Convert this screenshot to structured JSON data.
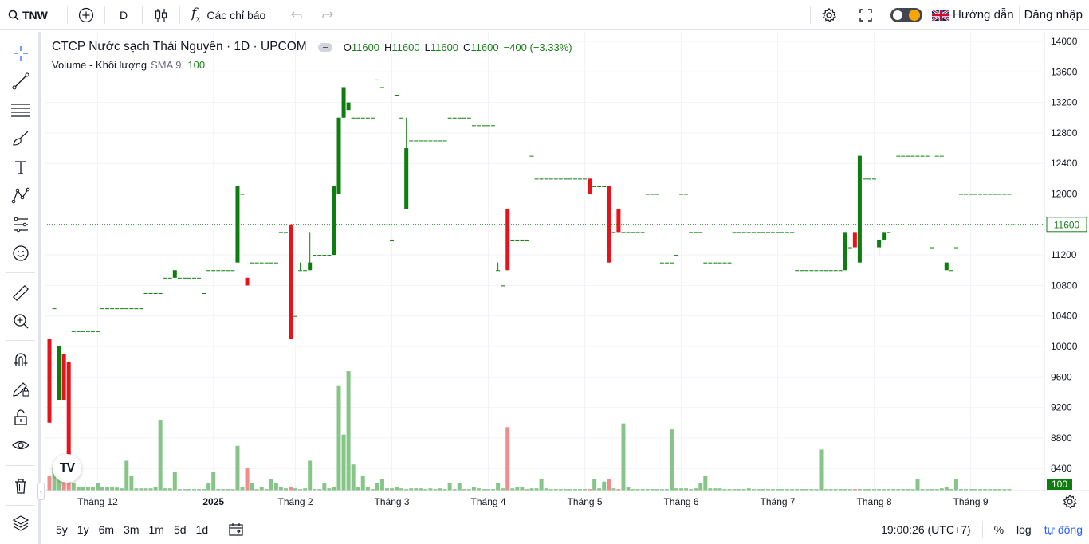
{
  "topbar": {
    "symbol": "TNW",
    "interval": "D",
    "indicators_label": "Các chỉ báo",
    "help_label": "Hướng dẫn",
    "login_label": "Đăng nhập"
  },
  "legend": {
    "title": "CTCP Nước sạch Thái Nguyên · 1D · UPCOM",
    "open_label": "O",
    "open": "11600",
    "high_label": "H",
    "high": "11600",
    "low_label": "L",
    "low": "11600",
    "close_label": "C",
    "close": "11600",
    "change": "−400 (−3.33%)",
    "volume_name": "Volume - Khối lượng",
    "volume_sma": "SMA 9",
    "volume_value": "100"
  },
  "bottombar": {
    "ranges": [
      "5y",
      "1y",
      "6m",
      "3m",
      "1m",
      "5d",
      "1d"
    ],
    "time": "19:00:26 (UTC+7)",
    "percent": "%",
    "log": "log",
    "auto": "tự động"
  },
  "logo_text": "TV",
  "colors": {
    "up": "#0d7d0d",
    "down": "#e8121a",
    "vol_up": "#86c587",
    "vol_down": "#f28b8b",
    "price_line": "#1b7d1b",
    "grid": "#f0f3fa"
  },
  "chart_data": {
    "type": "candlestick",
    "y_axis_ticks": [
      14000,
      13600,
      13200,
      12800,
      12400,
      12000,
      11600,
      11200,
      10800,
      10400,
      10000,
      9600,
      9200,
      8800,
      8400
    ],
    "ylim": [
      8200,
      14100
    ],
    "x_axis_labels": [
      "Tháng 12",
      "2025",
      "Tháng 2",
      "Tháng 3",
      "Tháng 4",
      "Tháng 5",
      "Tháng 6",
      "Tháng 7",
      "Tháng 8",
      "Tháng 9"
    ],
    "x_label_bar_index": [
      10,
      34,
      51,
      71,
      91,
      111,
      131,
      151,
      171,
      191
    ],
    "last_price": 11600,
    "last_price_label": "11600",
    "last_volume_label": "100",
    "ohlc": [
      [
        10100,
        10100,
        9000,
        9000
      ],
      [
        10500,
        10500,
        10500,
        10500
      ],
      [
        9300,
        10000,
        9300,
        10000
      ],
      [
        9900,
        9900,
        9300,
        9300
      ],
      [
        9800,
        9800,
        8500,
        8500
      ],
      [
        10200,
        10200,
        10200,
        10200
      ],
      [
        10200,
        10200,
        10200,
        10200
      ],
      [
        10200,
        10200,
        10200,
        10200
      ],
      [
        10200,
        10200,
        10200,
        10200
      ],
      [
        10200,
        10200,
        10200,
        10200
      ],
      [
        10200,
        10200,
        10200,
        10200
      ],
      [
        10500,
        10500,
        10500,
        10500
      ],
      [
        10500,
        10500,
        10500,
        10500
      ],
      [
        10500,
        10500,
        10500,
        10500
      ],
      [
        10500,
        10500,
        10500,
        10500
      ],
      [
        10500,
        10500,
        10500,
        10500
      ],
      [
        10500,
        10500,
        10500,
        10500
      ],
      [
        10500,
        10500,
        10500,
        10500
      ],
      [
        10500,
        10500,
        10500,
        10500
      ],
      [
        10500,
        10500,
        10500,
        10500
      ],
      [
        10700,
        10700,
        10700,
        10700
      ],
      [
        10700,
        10700,
        10700,
        10700
      ],
      [
        10700,
        10700,
        10700,
        10700
      ],
      [
        10700,
        10700,
        10700,
        10700
      ],
      [
        10900,
        10900,
        10900,
        10900
      ],
      [
        10900,
        10900,
        10900,
        10900
      ],
      [
        10900,
        11000,
        10900,
        11000
      ],
      [
        10900,
        10900,
        10900,
        10900
      ],
      [
        10900,
        10900,
        10900,
        10900
      ],
      [
        10900,
        10900,
        10900,
        10900
      ],
      [
        10900,
        10900,
        10900,
        10900
      ],
      [
        10900,
        10900,
        10900,
        10900
      ],
      [
        10700,
        10700,
        10700,
        10700
      ],
      [
        11000,
        11000,
        11000,
        11000
      ],
      [
        11000,
        11000,
        11000,
        11000
      ],
      [
        11000,
        11000,
        11000,
        11000
      ],
      [
        11000,
        11000,
        11000,
        11000
      ],
      [
        11000,
        11000,
        11000,
        11000
      ],
      [
        11000,
        11000,
        11000,
        11000
      ],
      [
        11100,
        12100,
        11100,
        12100
      ],
      [
        12000,
        12000,
        12000,
        12000
      ],
      [
        10900,
        10900,
        10800,
        10800
      ],
      [
        11100,
        11100,
        11100,
        11100
      ],
      [
        11100,
        11100,
        11100,
        11100
      ],
      [
        11100,
        11100,
        11100,
        11100
      ],
      [
        11100,
        11100,
        11100,
        11100
      ],
      [
        11100,
        11100,
        11100,
        11100
      ],
      [
        11100,
        11100,
        11100,
        11100
      ],
      [
        11500,
        11500,
        11500,
        11500
      ],
      [
        11500,
        11500,
        11500,
        11500
      ],
      [
        11600,
        11600,
        10100,
        10100
      ],
      [
        10400,
        10400,
        10400,
        10400
      ],
      [
        11000,
        11100,
        11000,
        11000
      ],
      [
        11000,
        11000,
        11000,
        11000
      ],
      [
        11000,
        11500,
        11000,
        11100
      ],
      [
        11200,
        11200,
        11200,
        11200
      ],
      [
        11200,
        11200,
        11200,
        11200
      ],
      [
        11200,
        11200,
        11200,
        11200
      ],
      [
        11200,
        11200,
        11200,
        11200
      ],
      [
        11200,
        12100,
        11200,
        12100
      ],
      [
        12000,
        13000,
        12000,
        13000
      ],
      [
        13000,
        13400,
        13000,
        13400
      ],
      [
        13100,
        13200,
        13100,
        13200
      ],
      [
        13000,
        13000,
        13000,
        13000
      ],
      [
        13000,
        13000,
        13000,
        13000
      ],
      [
        13000,
        13000,
        13000,
        13000
      ],
      [
        13000,
        13000,
        13000,
        13000
      ],
      [
        13000,
        13000,
        13000,
        13000
      ],
      [
        13500,
        13500,
        13500,
        13500
      ],
      [
        13400,
        13400,
        13400,
        13400
      ],
      [
        11600,
        11600,
        11600,
        11600
      ],
      [
        11400,
        11400,
        11400,
        11400
      ],
      [
        13300,
        13300,
        13300,
        13300
      ],
      [
        13000,
        13000,
        13000,
        13000
      ],
      [
        11800,
        13000,
        11800,
        12600
      ],
      [
        12700,
        12700,
        12700,
        12700
      ],
      [
        12700,
        12700,
        12700,
        12700
      ],
      [
        12700,
        12700,
        12700,
        12700
      ],
      [
        12700,
        12700,
        12700,
        12700
      ],
      [
        12700,
        12700,
        12700,
        12700
      ],
      [
        12700,
        12700,
        12700,
        12700
      ],
      [
        12700,
        12700,
        12700,
        12700
      ],
      [
        12700,
        12700,
        12700,
        12700
      ],
      [
        13000,
        13000,
        13000,
        13000
      ],
      [
        13000,
        13000,
        13000,
        13000
      ],
      [
        13000,
        13000,
        13000,
        13000
      ],
      [
        13000,
        13000,
        13000,
        13000
      ],
      [
        13000,
        13000,
        13000,
        13000
      ],
      [
        12900,
        12900,
        12900,
        12900
      ],
      [
        12900,
        12900,
        12900,
        12900
      ],
      [
        12900,
        12900,
        12900,
        12900
      ],
      [
        12900,
        12900,
        12900,
        12900
      ],
      [
        12900,
        12900,
        12900,
        12900
      ],
      [
        11000,
        11100,
        11000,
        11000
      ],
      [
        10800,
        10800,
        10800,
        10800
      ],
      [
        11800,
        11800,
        11000,
        11000
      ],
      [
        11400,
        11400,
        11400,
        11400
      ],
      [
        11400,
        11400,
        11400,
        11400
      ],
      [
        11400,
        11400,
        11400,
        11400
      ],
      [
        11400,
        11400,
        11400,
        11400
      ],
      [
        12500,
        12500,
        12500,
        12500
      ],
      [
        12200,
        12200,
        12200,
        12200
      ],
      [
        12200,
        12200,
        12200,
        12200
      ],
      [
        12200,
        12200,
        12200,
        12200
      ],
      [
        12200,
        12200,
        12200,
        12200
      ],
      [
        12200,
        12200,
        12200,
        12200
      ],
      [
        12200,
        12200,
        12200,
        12200
      ],
      [
        12200,
        12200,
        12200,
        12200
      ],
      [
        12200,
        12200,
        12200,
        12200
      ],
      [
        12200,
        12200,
        12200,
        12200
      ],
      [
        12200,
        12200,
        12200,
        12200
      ],
      [
        12200,
        12200,
        12200,
        12200
      ],
      [
        12200,
        12200,
        12000,
        12000
      ],
      [
        12100,
        12100,
        12100,
        12100
      ],
      [
        12100,
        12100,
        12100,
        12100
      ],
      [
        12100,
        12100,
        12100,
        12100
      ],
      [
        12100,
        12100,
        11100,
        11100
      ],
      [
        11500,
        11500,
        11500,
        11500
      ],
      [
        11800,
        11800,
        11500,
        11500
      ],
      [
        11500,
        11500,
        11500,
        11500
      ],
      [
        11500,
        11500,
        11500,
        11500
      ],
      [
        11500,
        11500,
        11500,
        11500
      ],
      [
        11500,
        11500,
        11500,
        11500
      ],
      [
        11500,
        11500,
        11500,
        11500
      ],
      [
        12000,
        12000,
        12000,
        12000
      ],
      [
        12000,
        12000,
        12000,
        12000
      ],
      [
        12000,
        12000,
        12000,
        12000
      ],
      [
        11100,
        11100,
        11100,
        11100
      ],
      [
        11100,
        11100,
        11100,
        11100
      ],
      [
        11100,
        11100,
        11100,
        11100
      ],
      [
        11200,
        11200,
        11200,
        11200
      ],
      [
        12000,
        12000,
        12000,
        12000
      ],
      [
        12000,
        12000,
        12000,
        12000
      ],
      [
        11500,
        11500,
        11500,
        11500
      ],
      [
        11500,
        11500,
        11500,
        11500
      ],
      [
        11500,
        11500,
        11500,
        11500
      ],
      [
        11100,
        11100,
        11100,
        11100
      ],
      [
        11100,
        11100,
        11100,
        11100
      ],
      [
        11100,
        11100,
        11100,
        11100
      ],
      [
        11100,
        11100,
        11100,
        11100
      ],
      [
        11100,
        11100,
        11100,
        11100
      ],
      [
        11100,
        11100,
        11100,
        11100
      ],
      [
        11500,
        11500,
        11500,
        11500
      ],
      [
        11500,
        11500,
        11500,
        11500
      ],
      [
        11500,
        11500,
        11500,
        11500
      ],
      [
        11500,
        11500,
        11500,
        11500
      ],
      [
        11500,
        11500,
        11500,
        11500
      ],
      [
        11500,
        11500,
        11500,
        11500
      ],
      [
        11500,
        11500,
        11500,
        11500
      ],
      [
        11500,
        11500,
        11500,
        11500
      ],
      [
        11500,
        11500,
        11500,
        11500
      ],
      [
        11500,
        11500,
        11500,
        11500
      ],
      [
        11500,
        11500,
        11500,
        11500
      ],
      [
        11500,
        11500,
        11500,
        11500
      ],
      [
        11500,
        11500,
        11500,
        11500
      ],
      [
        11000,
        11000,
        11000,
        11000
      ],
      [
        11000,
        11000,
        11000,
        11000
      ],
      [
        11000,
        11000,
        11000,
        11000
      ],
      [
        11000,
        11000,
        11000,
        11000
      ],
      [
        11000,
        11000,
        11000,
        11000
      ],
      [
        11000,
        11000,
        11000,
        11000
      ],
      [
        11000,
        11000,
        11000,
        11000
      ],
      [
        11000,
        11000,
        11000,
        11000
      ],
      [
        11000,
        11000,
        11000,
        11000
      ],
      [
        11000,
        11000,
        11000,
        11000
      ],
      [
        11000,
        11500,
        11000,
        11500
      ],
      [
        11300,
        11300,
        11300,
        11300
      ],
      [
        11500,
        11500,
        11300,
        11300
      ],
      [
        11100,
        12500,
        11100,
        12500
      ],
      [
        12200,
        12200,
        12200,
        12200
      ],
      [
        12200,
        12200,
        12200,
        12200
      ],
      [
        12200,
        12200,
        12200,
        12200
      ],
      [
        11300,
        11400,
        11200,
        11400
      ],
      [
        11400,
        11500,
        11400,
        11500
      ],
      [
        11500,
        11500,
        11500,
        11500
      ],
      [
        11600,
        11600,
        11600,
        11600
      ],
      [
        12500,
        12500,
        12500,
        12500
      ],
      [
        12500,
        12500,
        12500,
        12500
      ],
      [
        12500,
        12500,
        12500,
        12500
      ],
      [
        12500,
        12500,
        12500,
        12500
      ],
      [
        12500,
        12500,
        12500,
        12500
      ],
      [
        12500,
        12500,
        12500,
        12500
      ],
      [
        12500,
        12500,
        12500,
        12500
      ],
      [
        11300,
        11300,
        11300,
        11300
      ],
      [
        12500,
        12500,
        12500,
        12500
      ],
      [
        12500,
        12500,
        12500,
        12500
      ],
      [
        11000,
        11100,
        11000,
        11100
      ],
      [
        11000,
        11000,
        11000,
        11000
      ],
      [
        11300,
        11300,
        11300,
        11300
      ],
      [
        12000,
        12000,
        12000,
        12000
      ],
      [
        12000,
        12000,
        12000,
        12000
      ],
      [
        12000,
        12000,
        12000,
        12000
      ],
      [
        12000,
        12000,
        12000,
        12000
      ],
      [
        12000,
        12000,
        12000,
        12000
      ],
      [
        12000,
        12000,
        12000,
        12000
      ],
      [
        12000,
        12000,
        12000,
        12000
      ],
      [
        12000,
        12000,
        12000,
        12000
      ],
      [
        12000,
        12000,
        12000,
        12000
      ],
      [
        12000,
        12000,
        12000,
        12000
      ],
      [
        12000,
        12000,
        12000,
        12000
      ],
      [
        11600,
        11600,
        11600,
        11600
      ]
    ],
    "volume": [
      2,
      3,
      4,
      2,
      5,
      1,
      0.5,
      0.5,
      0.5,
      0.5,
      1,
      0.5,
      0.5,
      0.5,
      0.4,
      0.3,
      4,
      2,
      0.3,
      0.3,
      0.3,
      0.3,
      0.5,
      9.5,
      0.3,
      0.3,
      2.5,
      0.2,
      0.2,
      0.2,
      0.2,
      0.2,
      0.2,
      1,
      2.5,
      0.2,
      0.2,
      0.2,
      0.2,
      6,
      0.5,
      3,
      1,
      0.2,
      0.5,
      0.2,
      1.5,
      1,
      0.5,
      0.3,
      0.5,
      0.3,
      0.2,
      0.3,
      4,
      0.2,
      0.2,
      1,
      0.3,
      0.5,
      14,
      7.5,
      16,
      3.5,
      0.5,
      2,
      0.5,
      0.2,
      1,
      1.5,
      0.3,
      0.3,
      0.5,
      0.3,
      0.2,
      0.3,
      0.3,
      0.3,
      0.2,
      0.3,
      0.2,
      0.3,
      0.2,
      1,
      0.2,
      1,
      0.2,
      0.2,
      0.5,
      0.3,
      0.2,
      0.2,
      0.2,
      1,
      0.3,
      8.5,
      0.3,
      0.5,
      0.5,
      0.2,
      0.3,
      0.3,
      1.5,
      0.3,
      0.2,
      0.2,
      0.2,
      0.2,
      0.2,
      0.2,
      0.2,
      0.2,
      0.2,
      1.5,
      0.3,
      1.2,
      1.5,
      0.3,
      0.2,
      9,
      0.5,
      0.2,
      0.2,
      0.2,
      0.2,
      0.2,
      0.2,
      0.2,
      0.2,
      8.2,
      0.3,
      0.3,
      0.3,
      0.2,
      0.3,
      1,
      2,
      0.3,
      0.3,
      0.3,
      0.2,
      0.2,
      0.2,
      0.2,
      0.2,
      0.3,
      0.2,
      0.2,
      0.2,
      0.2,
      0.2,
      0.2,
      0.2,
      0.2,
      0.2,
      0.2,
      0.2,
      0.2,
      0.2,
      0.2,
      5.5,
      0.2,
      0.2,
      0.2,
      0.2,
      0.2,
      0.2,
      0.2,
      0.2,
      0.2,
      0.2,
      0.2,
      0.2,
      0.2,
      0.2,
      0.2,
      0.2,
      0.2,
      0.2,
      0.2,
      1.5,
      0.2,
      0.2,
      0.2,
      0.2,
      0.3,
      0.5,
      0.2,
      1.5,
      0.2,
      0.2,
      0.2,
      0.2,
      0.2,
      0.2,
      0.2,
      0.2,
      0.2,
      0.2,
      0.2
    ]
  }
}
